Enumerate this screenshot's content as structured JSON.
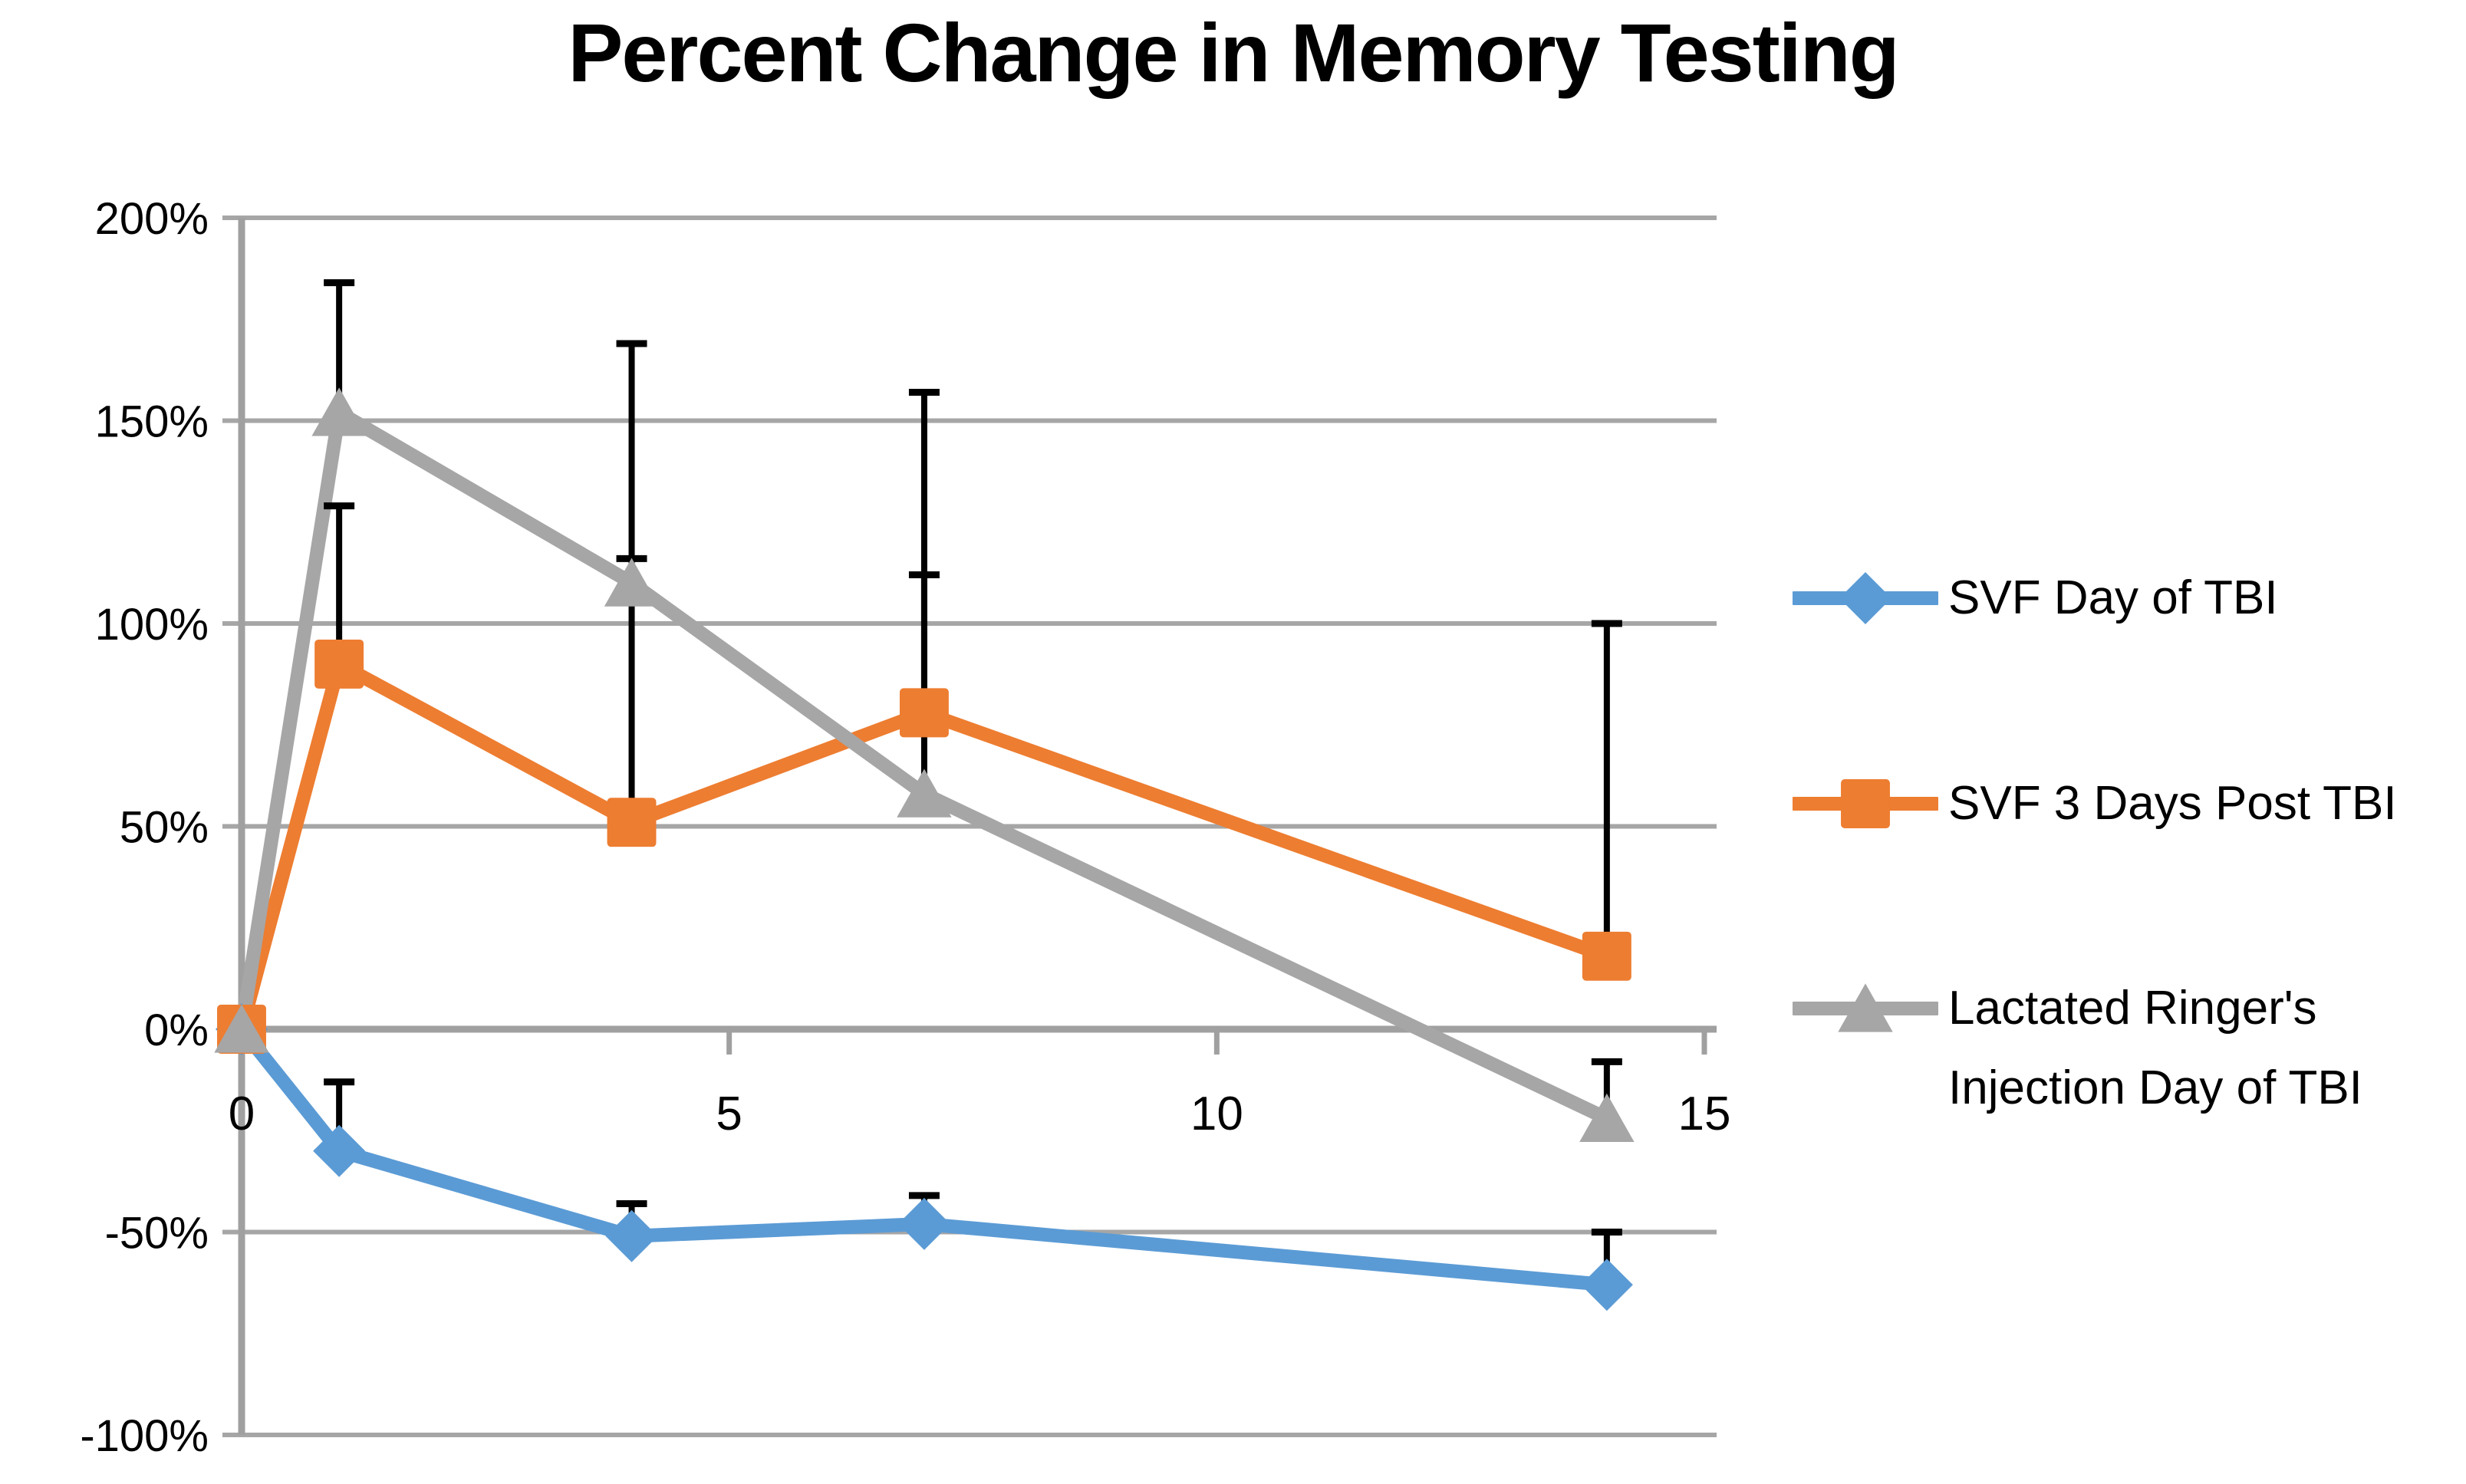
{
  "title": "Percent Change in Memory Testing",
  "chart_data": {
    "type": "line",
    "title": "Percent Change in Memory Testing",
    "x": [
      0,
      1,
      4,
      7,
      14
    ],
    "x_axis": {
      "min": 0,
      "max": 15,
      "ticks": [
        0,
        5,
        10,
        15
      ]
    },
    "y_axis": {
      "min": -100,
      "max": 200,
      "tick_step": 50,
      "unit": "%",
      "tick_labels": [
        "200%",
        "150%",
        "100%",
        "50%",
        "0%",
        "-50%",
        "-100%"
      ]
    },
    "grid": true,
    "legend_position": "right",
    "series": [
      {
        "name": "SVF Day of TBI",
        "color": "#5B9BD5",
        "marker": "diamond",
        "values": [
          0,
          -30,
          -51,
          -48,
          -63
        ],
        "error_up": [
          null,
          17,
          8,
          7,
          13
        ]
      },
      {
        "name": "SVF 3 Days Post TBI",
        "color": "#ED7D31",
        "marker": "square",
        "values": [
          0,
          90,
          51,
          78,
          18
        ],
        "error_up": [
          null,
          39,
          65,
          79,
          82
        ]
      },
      {
        "name": "Lactated Ringer's Injection Day of TBI",
        "color": "#A6A6A6",
        "marker": "triangle",
        "values": [
          0,
          152,
          110,
          58,
          -22
        ],
        "error_up": [
          null,
          32,
          59,
          54,
          14
        ]
      }
    ],
    "colors": {
      "gridline": "#A6A6A6",
      "axis": "#A0A0A0",
      "error_bar": "#000000",
      "text": "#000000"
    }
  }
}
